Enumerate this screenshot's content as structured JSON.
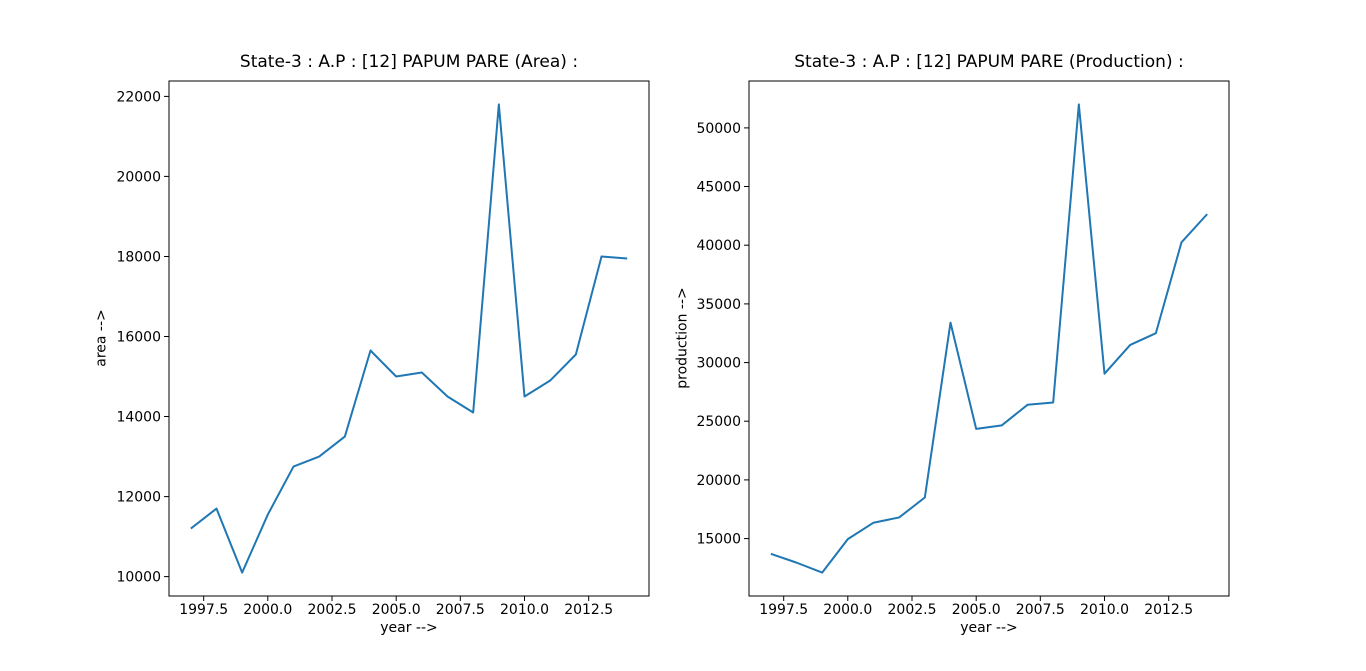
{
  "figure": {
    "background": "#ffffff",
    "axis_color": "#000000",
    "line_color": "#1f77b4"
  },
  "chart_data": [
    {
      "type": "line",
      "title": "State-3 : A.P : [12] PAPUM PARE (Area) :",
      "xlabel": "year -->",
      "ylabel": "area -->",
      "x": [
        1997,
        1998,
        1999,
        2000,
        2001,
        2002,
        2003,
        2004,
        2005,
        2006,
        2007,
        2008,
        2009,
        2010,
        2011,
        2012,
        2013,
        2014
      ],
      "series": [
        {
          "name": "area",
          "color": "#1f77b4",
          "values": [
            11200,
            11700,
            10100,
            11550,
            12750,
            13000,
            13500,
            15650,
            15000,
            15100,
            14500,
            14100,
            21800,
            14500,
            14900,
            15550,
            18000,
            17950
          ]
        }
      ],
      "xlim": [
        1996.15,
        2014.85
      ],
      "ylim": [
        9515,
        22385
      ],
      "xticks": [
        1997.5,
        2000.0,
        2002.5,
        2005.0,
        2007.5,
        2010.0,
        2012.5
      ],
      "xtick_labels": [
        "1997.5",
        "2000.0",
        "2002.5",
        "2005.0",
        "2007.5",
        "2010.0",
        "2012.5"
      ],
      "yticks": [
        10000,
        12000,
        14000,
        16000,
        18000,
        20000,
        22000
      ],
      "ytick_labels": [
        "10000",
        "12000",
        "14000",
        "16000",
        "18000",
        "20000",
        "22000"
      ],
      "grid": false,
      "legend": null
    },
    {
      "type": "line",
      "title": "State-3 : A.P : [12] PAPUM PARE (Production) :",
      "xlabel": "year -->",
      "ylabel": "production -->",
      "x": [
        1997,
        1998,
        1999,
        2000,
        2001,
        2002,
        2003,
        2004,
        2005,
        2006,
        2007,
        2008,
        2009,
        2010,
        2011,
        2012,
        2013,
        2014
      ],
      "series": [
        {
          "name": "production",
          "color": "#1f77b4",
          "values": [
            13700,
            12950,
            12100,
            14950,
            16350,
            16800,
            18500,
            33400,
            24350,
            24650,
            26400,
            26600,
            52000,
            29050,
            31500,
            32500,
            40250,
            42650
          ]
        }
      ],
      "xlim": [
        1996.15,
        2014.85
      ],
      "ylim": [
        10105,
        53995
      ],
      "xticks": [
        1997.5,
        2000.0,
        2002.5,
        2005.0,
        2007.5,
        2010.0,
        2012.5
      ],
      "xtick_labels": [
        "1997.5",
        "2000.0",
        "2002.5",
        "2005.0",
        "2007.5",
        "2010.0",
        "2012.5"
      ],
      "yticks": [
        15000,
        20000,
        25000,
        30000,
        35000,
        40000,
        45000,
        50000
      ],
      "ytick_labels": [
        "15000",
        "20000",
        "25000",
        "30000",
        "35000",
        "40000",
        "45000",
        "50000"
      ],
      "grid": false,
      "legend": null
    }
  ]
}
